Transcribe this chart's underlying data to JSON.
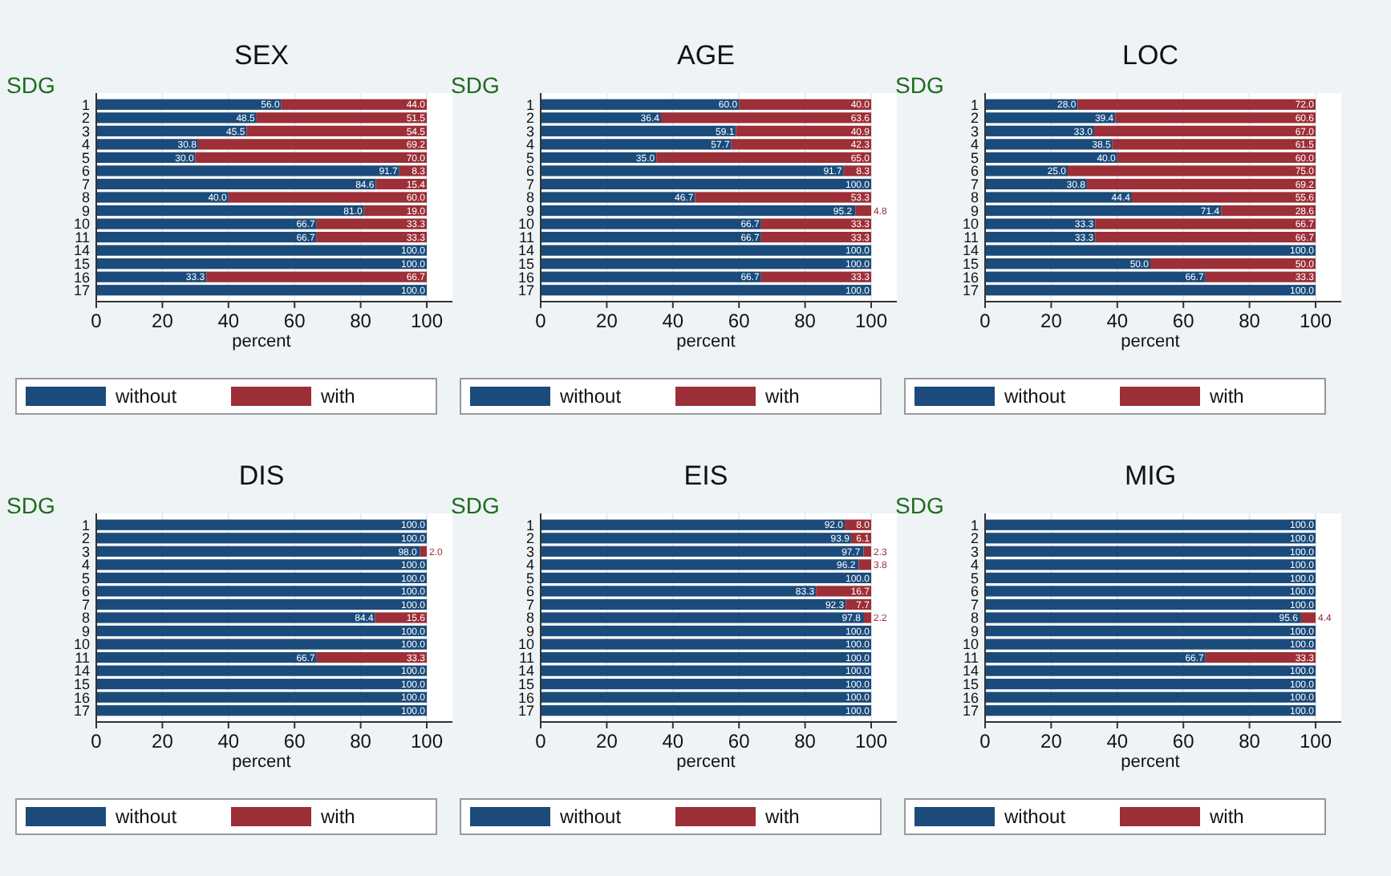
{
  "chart_data": [
    {
      "type": "bar",
      "orientation": "horizontal",
      "stacked": true,
      "title": "SEX",
      "ylabel": "SDG",
      "xlabel": "percent",
      "categories": [
        "1",
        "2",
        "3",
        "4",
        "5",
        "6",
        "7",
        "8",
        "9",
        "10",
        "11",
        "14",
        "15",
        "16",
        "17"
      ],
      "xlim": [
        0,
        100
      ],
      "xticks": [
        0,
        20,
        40,
        60,
        80,
        100
      ],
      "grid": "x",
      "legend": "bottom",
      "series": [
        {
          "name": "without",
          "color": "#1b4b7a",
          "values": [
            56.0,
            48.5,
            45.5,
            30.8,
            30.0,
            91.7,
            84.6,
            40.0,
            81.0,
            66.7,
            66.7,
            100,
            100,
            33.3,
            100
          ],
          "value_labels": [
            "56.0",
            "48.5",
            "45.5",
            "30.8",
            "30.0",
            "91.7",
            "84.6",
            "40.0",
            "81.0",
            "66.7",
            "66.7",
            "100.0",
            "100.0",
            "33.3",
            "100.0"
          ]
        },
        {
          "name": "with",
          "color": "#9c2f37",
          "values": [
            44.0,
            51.5,
            54.5,
            69.2,
            70.0,
            8.3,
            15.4,
            60.0,
            19.0,
            33.3,
            33.3,
            0,
            0,
            66.7,
            0
          ],
          "value_labels": [
            "44.0",
            "51.5",
            "54.5",
            "69.2",
            "70.0",
            "8.3",
            "15.4",
            "60.0",
            "19.0",
            "33.3",
            "33.3",
            null,
            null,
            "66.7",
            null
          ]
        }
      ]
    },
    {
      "type": "bar",
      "orientation": "horizontal",
      "stacked": true,
      "title": "AGE",
      "ylabel": "SDG",
      "xlabel": "percent",
      "categories": [
        "1",
        "2",
        "3",
        "4",
        "5",
        "6",
        "7",
        "8",
        "9",
        "10",
        "11",
        "14",
        "15",
        "16",
        "17"
      ],
      "xlim": [
        0,
        100
      ],
      "xticks": [
        0,
        20,
        40,
        60,
        80,
        100
      ],
      "grid": "x",
      "legend": "bottom",
      "series": [
        {
          "name": "without",
          "color": "#1b4b7a",
          "values": [
            60.0,
            36.4,
            59.1,
            57.7,
            35.0,
            91.7,
            100,
            46.7,
            95.2,
            66.7,
            66.7,
            100,
            100,
            66.7,
            100
          ],
          "value_labels": [
            "60.0",
            "36.4",
            "59.1",
            "57.7",
            "35.0",
            "91.7",
            "100.0",
            "46.7",
            "95.2",
            "66.7",
            "66.7",
            "100.0",
            "100.0",
            "66.7",
            "100.0"
          ]
        },
        {
          "name": "with",
          "color": "#9c2f37",
          "values": [
            40.0,
            63.6,
            40.9,
            42.3,
            65.0,
            8.3,
            0,
            53.3,
            4.8,
            33.3,
            33.3,
            0,
            0,
            33.3,
            0
          ],
          "value_labels": [
            "40.0",
            "63.6",
            "40.9",
            "42.3",
            "65.0",
            "8.3",
            null,
            "53.3",
            "4.8",
            "33.3",
            "33.3",
            null,
            null,
            "33.3",
            null
          ]
        }
      ]
    },
    {
      "type": "bar",
      "orientation": "horizontal",
      "stacked": true,
      "title": "LOC",
      "ylabel": "SDG",
      "xlabel": "percent",
      "categories": [
        "1",
        "2",
        "3",
        "4",
        "5",
        "6",
        "7",
        "8",
        "9",
        "10",
        "11",
        "14",
        "15",
        "16",
        "17"
      ],
      "xlim": [
        0,
        100
      ],
      "xticks": [
        0,
        20,
        40,
        60,
        80,
        100
      ],
      "grid": "x",
      "legend": "bottom",
      "series": [
        {
          "name": "without",
          "color": "#1b4b7a",
          "values": [
            28.0,
            39.4,
            33.0,
            38.5,
            40.0,
            25.0,
            30.8,
            44.4,
            71.4,
            33.3,
            33.3,
            100,
            50.0,
            66.7,
            100
          ],
          "value_labels": [
            "28.0",
            "39.4",
            "33.0",
            "38.5",
            "40.0",
            "25.0",
            "30.8",
            "44.4",
            "71.4",
            "33.3",
            "33.3",
            "100.0",
            "50.0",
            "66.7",
            "100.0"
          ]
        },
        {
          "name": "with",
          "color": "#9c2f37",
          "values": [
            72.0,
            60.6,
            67.0,
            61.5,
            60.0,
            75.0,
            69.2,
            55.6,
            28.6,
            66.7,
            66.7,
            0,
            50.0,
            33.3,
            0
          ],
          "value_labels": [
            "72.0",
            "60.6",
            "67.0",
            "61.5",
            "60.0",
            "75.0",
            "69.2",
            "55.6",
            "28.6",
            "66.7",
            "66.7",
            null,
            "50.0",
            "33.3",
            null
          ]
        }
      ]
    },
    {
      "type": "bar",
      "orientation": "horizontal",
      "stacked": true,
      "title": "DIS",
      "ylabel": "SDG",
      "xlabel": "percent",
      "categories": [
        "1",
        "2",
        "3",
        "4",
        "5",
        "6",
        "7",
        "8",
        "9",
        "10",
        "11",
        "14",
        "15",
        "16",
        "17"
      ],
      "xlim": [
        0,
        100
      ],
      "xticks": [
        0,
        20,
        40,
        60,
        80,
        100
      ],
      "grid": "x",
      "legend": "bottom",
      "series": [
        {
          "name": "without",
          "color": "#1b4b7a",
          "values": [
            100,
            100,
            98.0,
            100,
            100,
            100,
            100,
            84.4,
            100,
            100,
            66.7,
            100,
            100,
            100,
            100
          ],
          "value_labels": [
            "100.0",
            "100.0",
            "98.0",
            "100.0",
            "100.0",
            "100.0",
            "100.0",
            "84.4",
            "100.0",
            "100.0",
            "66.7",
            "100.0",
            "100.0",
            "100.0",
            "100.0"
          ]
        },
        {
          "name": "with",
          "color": "#9c2f37",
          "values": [
            0,
            0,
            2.0,
            0,
            0,
            0,
            0,
            15.6,
            0,
            0,
            33.3,
            0,
            0,
            0,
            0
          ],
          "value_labels": [
            null,
            null,
            "2.0",
            null,
            null,
            null,
            null,
            "15.6",
            null,
            null,
            "33.3",
            null,
            null,
            null,
            null
          ]
        }
      ]
    },
    {
      "type": "bar",
      "orientation": "horizontal",
      "stacked": true,
      "title": "EIS",
      "ylabel": "SDG",
      "xlabel": "percent",
      "categories": [
        "1",
        "2",
        "3",
        "4",
        "5",
        "6",
        "7",
        "8",
        "9",
        "10",
        "11",
        "14",
        "15",
        "16",
        "17"
      ],
      "xlim": [
        0,
        100
      ],
      "xticks": [
        0,
        20,
        40,
        60,
        80,
        100
      ],
      "grid": "x",
      "legend": "bottom",
      "series": [
        {
          "name": "without",
          "color": "#1b4b7a",
          "values": [
            92.0,
            93.9,
            97.7,
            96.2,
            100,
            83.3,
            92.3,
            97.8,
            100,
            100,
            100,
            100,
            100,
            100,
            100
          ],
          "value_labels": [
            "92.0",
            "93.9",
            "97.7",
            "96.2",
            "100.0",
            "83.3",
            "92.3",
            "97.8",
            "100.0",
            "100.0",
            "100.0",
            "100.0",
            "100.0",
            "100.0",
            "100.0"
          ]
        },
        {
          "name": "with",
          "color": "#9c2f37",
          "values": [
            8.0,
            6.1,
            2.3,
            3.8,
            0,
            16.7,
            7.7,
            2.2,
            0,
            0,
            0,
            0,
            0,
            0,
            0
          ],
          "value_labels": [
            "8.0",
            "6.1",
            "2.3",
            "3.8",
            null,
            "16.7",
            "7.7",
            "2.2",
            null,
            null,
            null,
            null,
            null,
            null,
            null
          ]
        }
      ]
    },
    {
      "type": "bar",
      "orientation": "horizontal",
      "stacked": true,
      "title": "MIG",
      "ylabel": "SDG",
      "xlabel": "percent",
      "categories": [
        "1",
        "2",
        "3",
        "4",
        "5",
        "6",
        "7",
        "8",
        "9",
        "10",
        "11",
        "14",
        "15",
        "16",
        "17"
      ],
      "xlim": [
        0,
        100
      ],
      "xticks": [
        0,
        20,
        40,
        60,
        80,
        100
      ],
      "grid": "x",
      "legend": "bottom",
      "series": [
        {
          "name": "without",
          "color": "#1b4b7a",
          "values": [
            100,
            100,
            100,
            100,
            100,
            100,
            100,
            95.6,
            100,
            100,
            66.7,
            100,
            100,
            100,
            100
          ],
          "value_labels": [
            "100.0",
            "100.0",
            "100.0",
            "100.0",
            "100.0",
            "100.0",
            "100.0",
            "95.6",
            "100.0",
            "100.0",
            "66.7",
            "100.0",
            "100.0",
            "100.0",
            "100.0"
          ]
        },
        {
          "name": "with",
          "color": "#9c2f37",
          "values": [
            0,
            0,
            0,
            0,
            0,
            0,
            0,
            4.4,
            0,
            0,
            33.3,
            0,
            0,
            0,
            0
          ],
          "value_labels": [
            null,
            null,
            null,
            null,
            null,
            null,
            null,
            "4.4",
            null,
            null,
            "33.3",
            null,
            null,
            null,
            null
          ]
        }
      ]
    }
  ]
}
